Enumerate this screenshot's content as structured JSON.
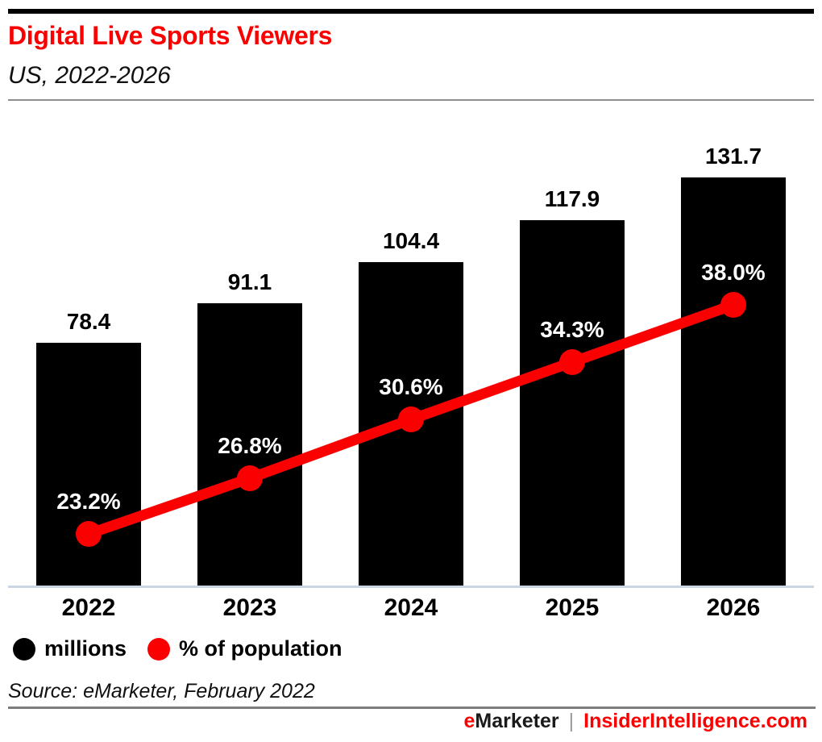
{
  "header": {
    "title": "Digital Live Sports Viewers",
    "subtitle": "US, 2022-2026"
  },
  "chart_data": {
    "type": "bar",
    "combo": "bar+line",
    "title": "Digital Live Sports Viewers",
    "subtitle": "US, 2022-2026",
    "categories": [
      "2022",
      "2023",
      "2024",
      "2025",
      "2026"
    ],
    "series": [
      {
        "name": "millions",
        "mark": "bar",
        "color": "#000000",
        "values": [
          78.4,
          91.1,
          104.4,
          117.9,
          131.7
        ],
        "label_suffix": ""
      },
      {
        "name": "% of population",
        "mark": "line",
        "color": "#fa0000",
        "values": [
          23.2,
          26.8,
          30.6,
          34.3,
          38.0
        ],
        "label_suffix": "%"
      }
    ],
    "xlabel": "",
    "ylabel": "",
    "ylim_bar": [
      0,
      140
    ],
    "ylim_line_pct": [
      0,
      45
    ],
    "gridlines": false,
    "axes_shown": "x-baseline-only",
    "legend_position": "bottom-left",
    "bar_label_color": "#000000",
    "line_label_color": "#ffffff"
  },
  "legend": {
    "items": [
      {
        "label": "millions",
        "color": "#000000"
      },
      {
        "label": "% of population",
        "color": "#fa0000"
      }
    ]
  },
  "source": "Source: eMarketer, February 2022",
  "footer": {
    "brand_e": "e",
    "brand_rest": "Marketer",
    "separator": "|",
    "site": "InsiderIntelligence.com"
  },
  "colors": {
    "accent_red": "#fa0000",
    "bar_black": "#000000",
    "baseline_blue_gray": "#ccd5e3",
    "divider_gray": "#8e8e8e"
  }
}
